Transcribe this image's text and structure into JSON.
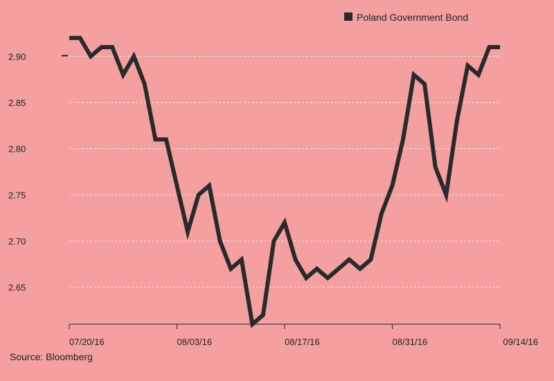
{
  "chart_data": {
    "type": "line",
    "series": [
      {
        "name": "Poland Government Bond",
        "color": "#2a2a2a",
        "values": [
          2.92,
          2.92,
          2.9,
          2.91,
          2.91,
          2.88,
          2.9,
          2.87,
          2.81,
          2.81,
          2.76,
          2.71,
          2.75,
          2.76,
          2.7,
          2.67,
          2.68,
          2.61,
          2.62,
          2.7,
          2.72,
          2.68,
          2.66,
          2.67,
          2.66,
          2.67,
          2.68,
          2.67,
          2.68,
          2.73,
          2.76,
          2.81,
          2.88,
          2.87,
          2.78,
          2.75,
          2.83,
          2.89,
          2.88,
          2.91,
          2.91
        ]
      }
    ],
    "x_tick_labels": [
      "07/20/16",
      "08/03/16",
      "08/17/16",
      "08/31/16",
      "09/14/16"
    ],
    "x_tick_positions": [
      0,
      10,
      20,
      30,
      40
    ],
    "y_ticks": [
      2.65,
      2.7,
      2.75,
      2.8,
      2.85,
      2.9
    ],
    "y_tick_labels": [
      "2.65",
      "2.70",
      "2.75",
      "2.80",
      "2.85",
      "2.90"
    ],
    "ylim": [
      2.61,
      2.925
    ],
    "grid": true,
    "legend_position": "top-right",
    "title": "",
    "xlabel": "",
    "ylabel": ""
  },
  "source": "Source: Bloomberg",
  "colors": {
    "background": "#f4a0a0",
    "gridline": "#fbe6e6",
    "axis": "#222222"
  }
}
